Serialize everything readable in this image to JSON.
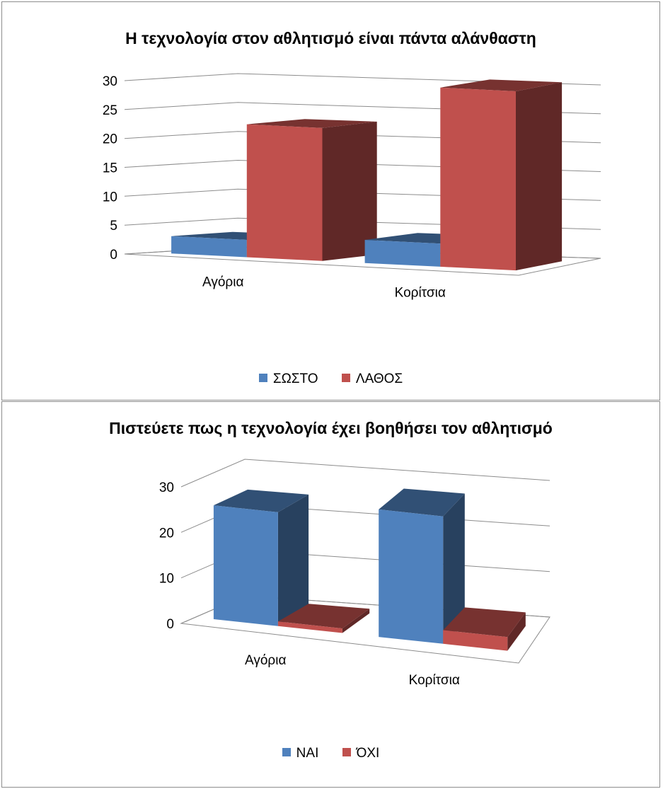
{
  "chart_data": [
    {
      "type": "bar",
      "title": "Η τεχνολογία στον αθλητισμό είναι πάντα αλάνθαστη",
      "categories": [
        "Αγόρια",
        "Κορίτσια"
      ],
      "series": [
        {
          "name": "ΣΩΣΤΟ",
          "values": [
            3,
            4
          ],
          "color": "#4F81BD"
        },
        {
          "name": "ΛΑΘΟΣ",
          "values": [
            23,
            31
          ],
          "color": "#C0504D"
        }
      ],
      "ylim": [
        0,
        30
      ],
      "yticks": [
        "0",
        "5",
        "10",
        "15",
        "20",
        "25",
        "30"
      ],
      "grid": true,
      "legend_position": "bottom",
      "style": "3d-clustered-column"
    },
    {
      "type": "bar",
      "title": "Πιστεύετε πως η τεχνολογία έχει βοηθήσει τον αθλητισμό",
      "categories": [
        "Αγόρια",
        "Κορίτσια"
      ],
      "series": [
        {
          "name": "ΝΑΙ",
          "values": [
            25,
            28
          ],
          "color": "#4F81BD"
        },
        {
          "name": "ΌΧΙ",
          "values": [
            1,
            3
          ],
          "color": "#C0504D"
        }
      ],
      "ylim": [
        0,
        30
      ],
      "yticks": [
        "0",
        "10",
        "20",
        "30"
      ],
      "grid": true,
      "legend_position": "bottom",
      "style": "3d-clustered-column"
    }
  ]
}
